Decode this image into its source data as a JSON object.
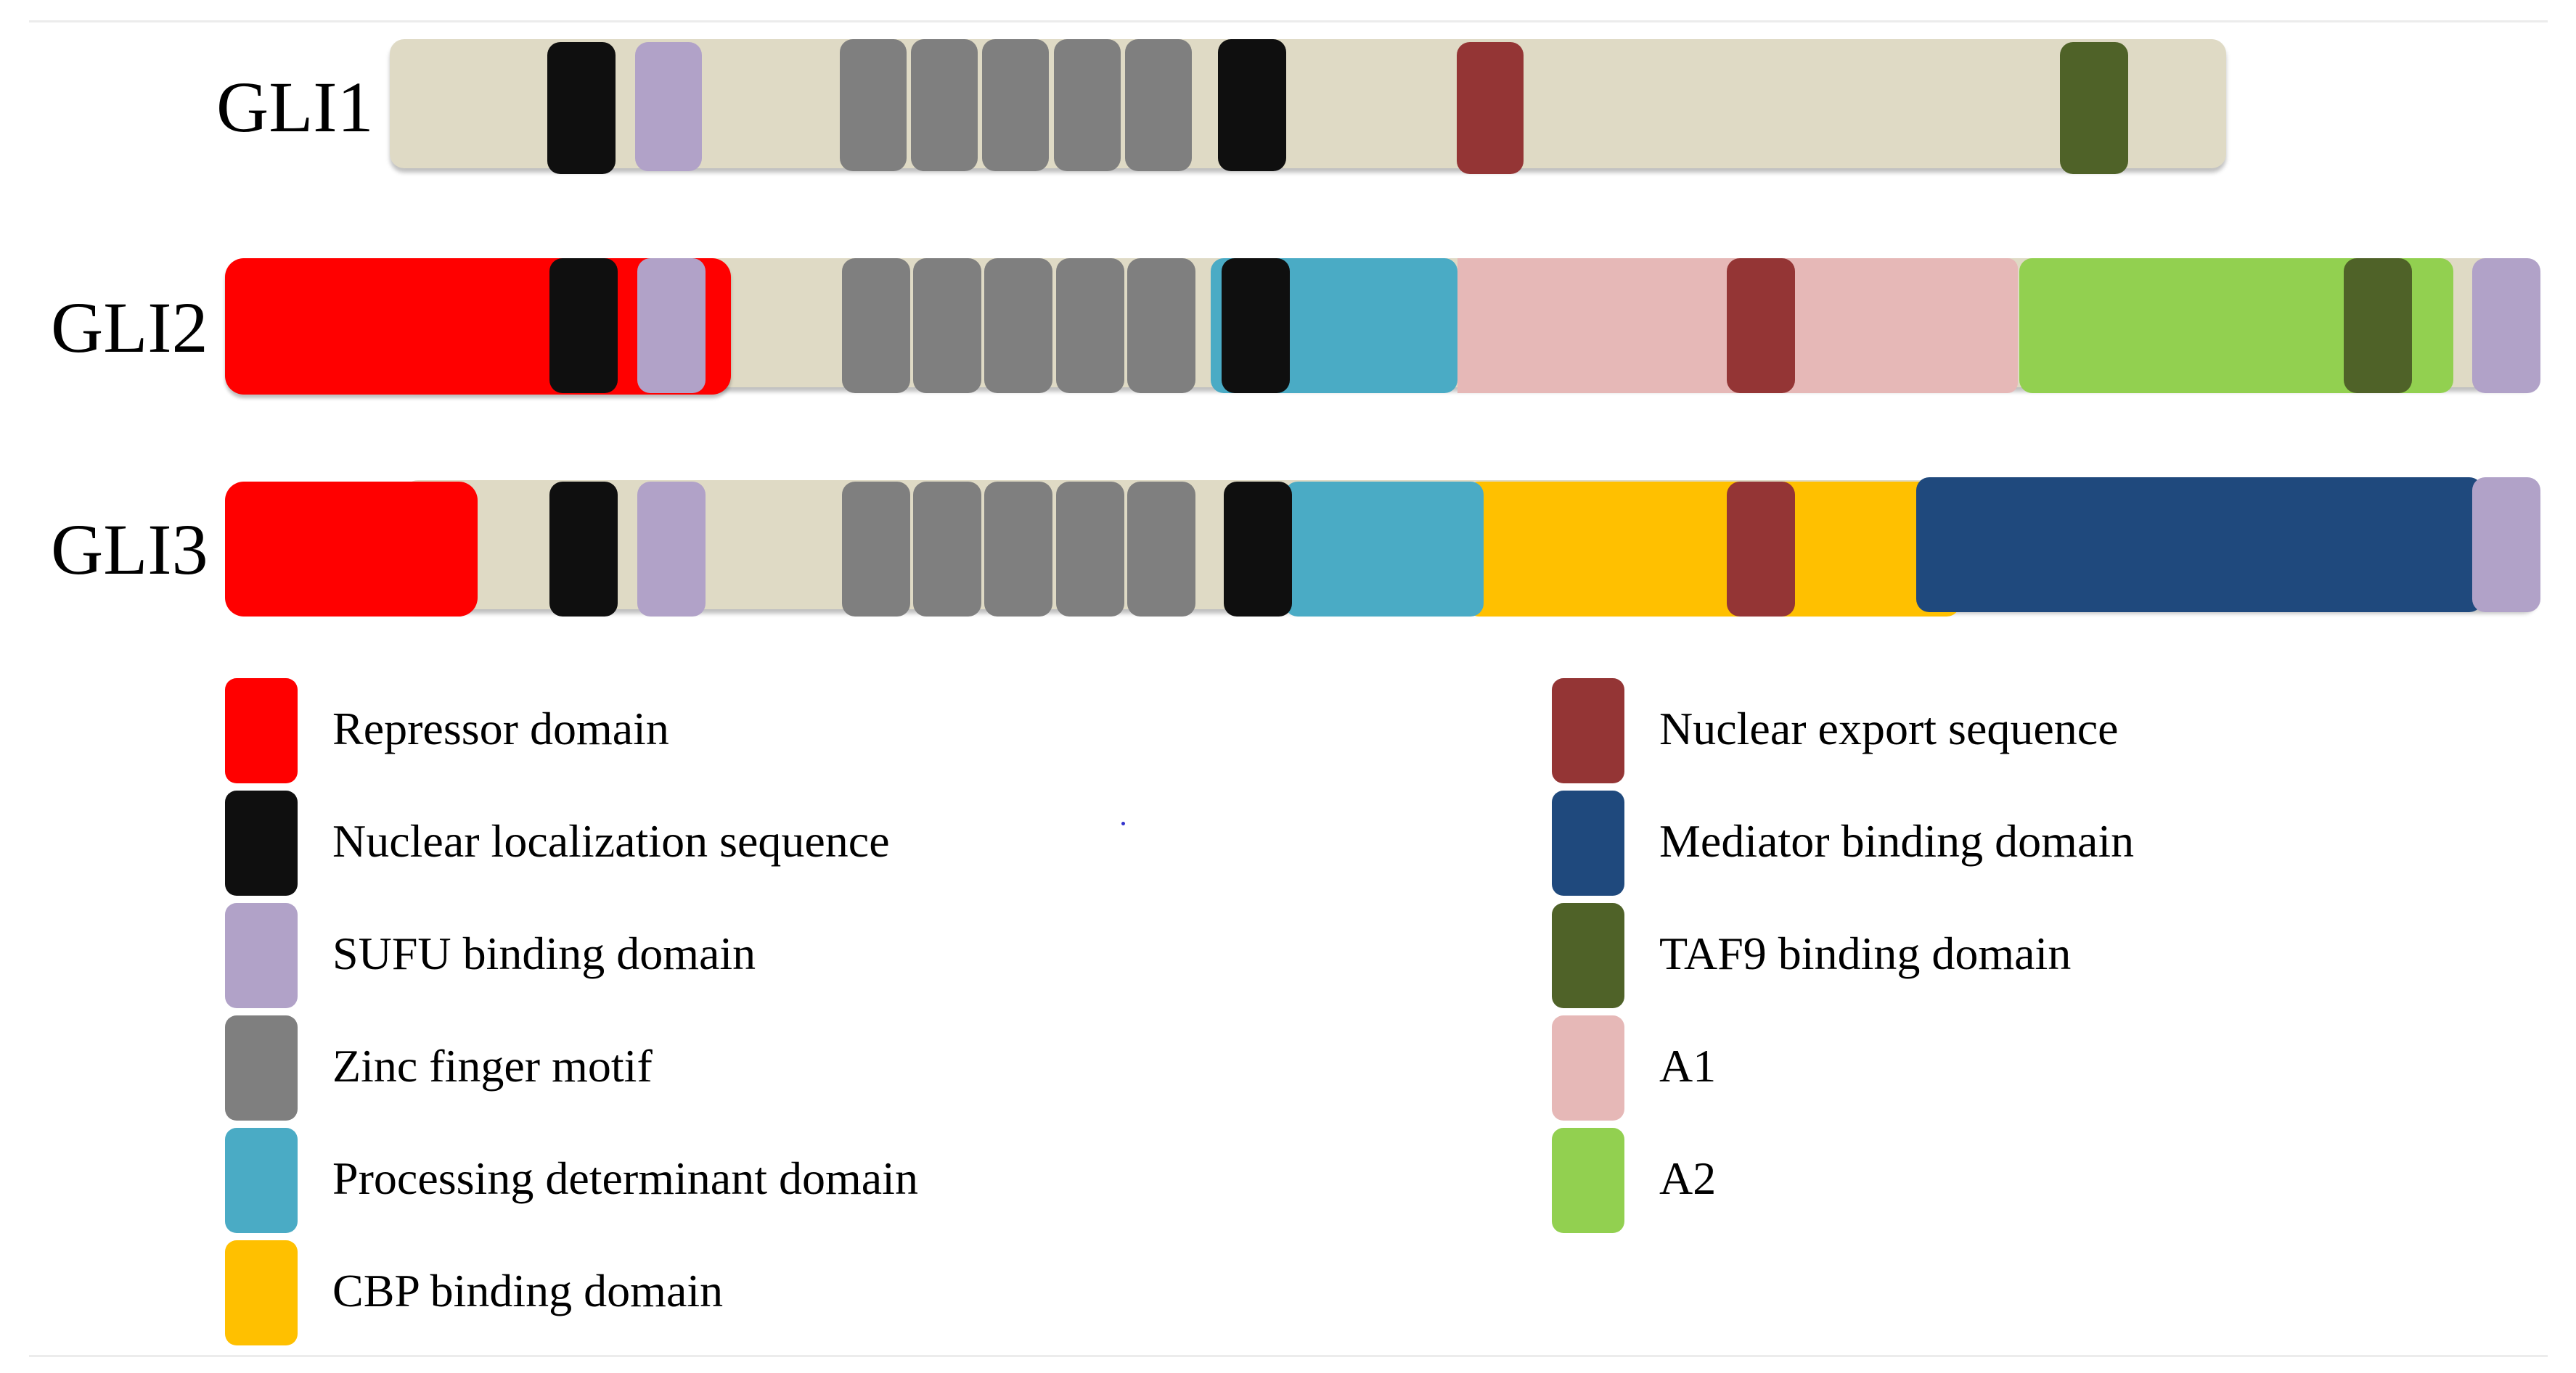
{
  "proteins": [
    {
      "name": "GLI1"
    },
    {
      "name": "GLI2"
    },
    {
      "name": "GLI3"
    }
  ],
  "legend": [
    {
      "key": "repressor",
      "label": "Repressor domain",
      "color": "#ff0000"
    },
    {
      "key": "nls",
      "label": "Nuclear localization sequence",
      "color": "#0f0f0f"
    },
    {
      "key": "sufu",
      "label": "SUFU binding domain",
      "color": "#b1a2c8"
    },
    {
      "key": "zinc_finger",
      "label": "Zinc finger motif",
      "color": "#7f7f7f"
    },
    {
      "key": "processing",
      "label": "Processing determinant domain",
      "color": "#4aabc5"
    },
    {
      "key": "cbp",
      "label": "CBP binding domain",
      "color": "#ffc000"
    },
    {
      "key": "nes",
      "label": "Nuclear export sequence",
      "color": "#943535"
    },
    {
      "key": "mediator",
      "label": "Mediator binding domain",
      "color": "#1f497d"
    },
    {
      "key": "taf9",
      "label": "TAF9 binding domain",
      "color": "#4f6228"
    },
    {
      "key": "a1",
      "label": "A1",
      "color": "#e6b8b7"
    },
    {
      "key": "a2",
      "label": "A2",
      "color": "#92d050"
    }
  ],
  "colors": {
    "backbone": "#dfdac5",
    "divider": "#ececec",
    "stray_dot": "#3333cc"
  }
}
